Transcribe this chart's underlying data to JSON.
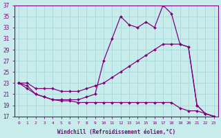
{
  "xlabel": "Windchill (Refroidissement éolien,°C)",
  "background_color": "#c8ecec",
  "line_color": "#800080",
  "grid_color": "#a8d8d8",
  "xlim": [
    -0.5,
    23.5
  ],
  "ylim": [
    17,
    37
  ],
  "xticks": [
    0,
    1,
    2,
    3,
    4,
    5,
    6,
    7,
    8,
    9,
    10,
    11,
    12,
    13,
    14,
    15,
    16,
    17,
    18,
    19,
    20,
    21,
    22,
    23
  ],
  "yticks": [
    17,
    19,
    21,
    23,
    25,
    27,
    29,
    31,
    33,
    35,
    37
  ],
  "line1_x": [
    0,
    1,
    2,
    3,
    4,
    5,
    6,
    7,
    8,
    9,
    10,
    11,
    12,
    13,
    14,
    15,
    16,
    17,
    18,
    19,
    20,
    21,
    22,
    23
  ],
  "line1_y": [
    23,
    22,
    21,
    20.5,
    20,
    20,
    20,
    20,
    20.5,
    21,
    27,
    31,
    35,
    33.5,
    33,
    34,
    33,
    37,
    35.5,
    30,
    29.5,
    19,
    17.5,
    17
  ],
  "line2_x": [
    0,
    1,
    2,
    3,
    4,
    5,
    6,
    7,
    8,
    9,
    10,
    11,
    12,
    13,
    14,
    15,
    16,
    17,
    18,
    19,
    20,
    21,
    22,
    23
  ],
  "line2_y": [
    23,
    23,
    22,
    22,
    22,
    21.5,
    21.5,
    21.5,
    22,
    22.5,
    23,
    24,
    25,
    26,
    27,
    28,
    29,
    30,
    30,
    30,
    29.5,
    19,
    17.5,
    17
  ],
  "line3_x": [
    0,
    1,
    2,
    3,
    4,
    5,
    6,
    7,
    8,
    9,
    10,
    11,
    12,
    13,
    14,
    15,
    16,
    17,
    18,
    19,
    20,
    21,
    22,
    23
  ],
  "line3_y": [
    23,
    22.5,
    21,
    20.5,
    20,
    19.8,
    19.8,
    19.5,
    19.5,
    19.5,
    19.5,
    19.5,
    19.5,
    19.5,
    19.5,
    19.5,
    19.5,
    19.5,
    19.5,
    18.5,
    18,
    18,
    17.5,
    17
  ]
}
